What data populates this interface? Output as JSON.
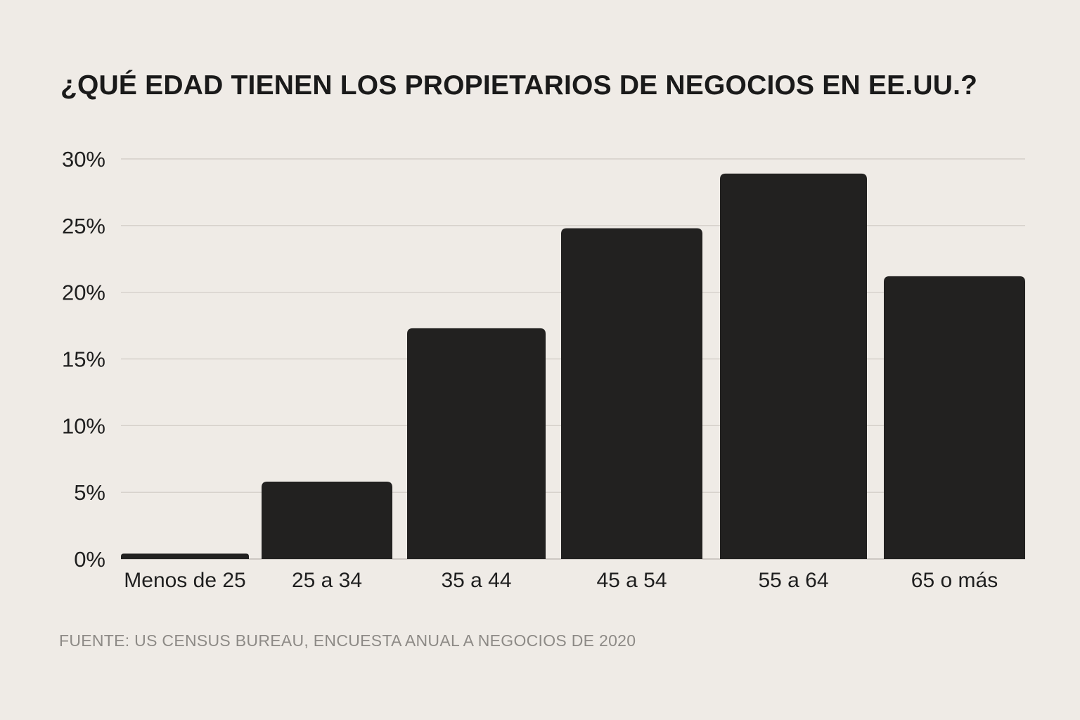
{
  "chart_data": {
    "type": "bar",
    "title": "¿QUÉ EDAD TIENEN LOS PROPIETARIOS DE NEGOCIOS EN EE.UU.?",
    "categories": [
      "Menos de 25",
      "25 a 34",
      "35 a 44",
      "45 a 54",
      "55 a 64",
      "65 o más"
    ],
    "values": [
      0.4,
      5.8,
      17.3,
      24.8,
      28.9,
      21.2
    ],
    "unit": "%",
    "ylim": [
      0,
      30
    ],
    "yticks": [
      0,
      5,
      10,
      15,
      20,
      25,
      30
    ],
    "ytick_labels": [
      "0%",
      "5%",
      "10%",
      "15%",
      "20%",
      "25%",
      "30%"
    ],
    "xlabel": "",
    "ylabel": "",
    "grid": true,
    "legend": "none",
    "bar_color": "#222120",
    "background_color": "#efebe6",
    "source": "FUENTE: US CENSUS BUREAU, ENCUESTA ANUAL A NEGOCIOS DE 2020"
  }
}
